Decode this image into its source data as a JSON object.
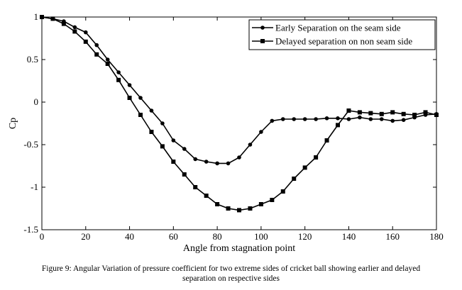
{
  "chart_data": {
    "type": "line",
    "title": "",
    "xlabel": "Angle from stagnation point",
    "ylabel": "Cp",
    "xlim": [
      0,
      180
    ],
    "ylim": [
      -1.5,
      1
    ],
    "x_ticks": [
      0,
      20,
      40,
      60,
      80,
      100,
      120,
      140,
      160,
      180
    ],
    "x_tick_labels": [
      "0",
      "20",
      "40",
      "60",
      "80",
      "100",
      "120",
      "140",
      "160",
      "180"
    ],
    "y_ticks": [
      -1.5,
      -1,
      -0.5,
      0,
      0.5,
      1
    ],
    "y_tick_labels": [
      "-1.5",
      "-1",
      "-0.5",
      "0",
      "0.5",
      "1"
    ],
    "grid": false,
    "legend_position": "top-right",
    "series": [
      {
        "name": "Early Separation on the seam side",
        "marker": "circle",
        "color": "#000000",
        "x": [
          0,
          5,
          10,
          15,
          20,
          25,
          30,
          35,
          40,
          45,
          50,
          55,
          60,
          65,
          70,
          75,
          80,
          85,
          90,
          95,
          100,
          105,
          110,
          115,
          120,
          125,
          130,
          135,
          140,
          145,
          150,
          155,
          160,
          165,
          170,
          175,
          180
        ],
        "y": [
          1.0,
          0.98,
          0.95,
          0.88,
          0.82,
          0.67,
          0.5,
          0.35,
          0.2,
          0.05,
          -0.1,
          -0.25,
          -0.45,
          -0.55,
          -0.67,
          -0.7,
          -0.72,
          -0.72,
          -0.65,
          -0.5,
          -0.35,
          -0.22,
          -0.2,
          -0.2,
          -0.2,
          -0.2,
          -0.19,
          -0.19,
          -0.2,
          -0.18,
          -0.2,
          -0.2,
          -0.22,
          -0.21,
          -0.18,
          -0.15,
          -0.14
        ]
      },
      {
        "name": "Delayed separation on non seam side",
        "marker": "square",
        "color": "#000000",
        "x": [
          0,
          5,
          10,
          15,
          20,
          25,
          30,
          35,
          40,
          45,
          50,
          55,
          60,
          65,
          70,
          75,
          80,
          85,
          90,
          95,
          100,
          105,
          110,
          115,
          120,
          125,
          130,
          135,
          140,
          145,
          150,
          155,
          160,
          165,
          170,
          175,
          180
        ],
        "y": [
          1.0,
          0.98,
          0.92,
          0.83,
          0.71,
          0.56,
          0.45,
          0.26,
          0.05,
          -0.15,
          -0.35,
          -0.52,
          -0.7,
          -0.85,
          -1.0,
          -1.1,
          -1.2,
          -1.25,
          -1.27,
          -1.25,
          -1.2,
          -1.15,
          -1.05,
          -0.9,
          -0.77,
          -0.65,
          -0.45,
          -0.27,
          -0.1,
          -0.12,
          -0.13,
          -0.14,
          -0.12,
          -0.14,
          -0.15,
          -0.12,
          -0.15
        ]
      }
    ]
  },
  "caption": {
    "line1": "Figure 9: Angular Variation of pressure coefficient for two extreme sides of cricket ball showing earlier and delayed",
    "line2": "separation on respective sides"
  }
}
